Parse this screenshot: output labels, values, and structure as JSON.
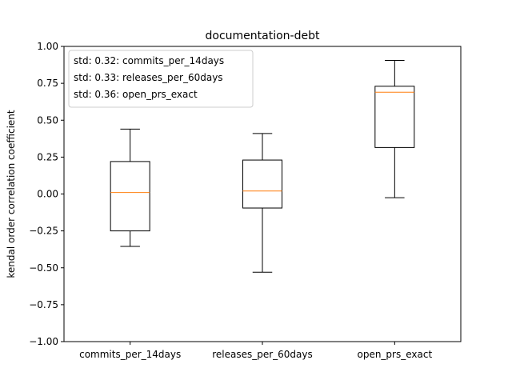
{
  "chart_data": {
    "type": "boxplot",
    "title": "documentation-debt",
    "xlabel": "",
    "ylabel": "kendal order correlation coefficient",
    "ylim": [
      -1.0,
      1.0
    ],
    "yticks": [
      -1.0,
      -0.75,
      -0.5,
      -0.25,
      0.0,
      0.25,
      0.5,
      0.75,
      1.0
    ],
    "ytick_labels": [
      "−1.00",
      "−0.75",
      "−0.50",
      "−0.25",
      "0.00",
      "0.25",
      "0.50",
      "0.75",
      "1.00"
    ],
    "categories": [
      "commits_per_14days",
      "releases_per_60days",
      "open_prs_exact"
    ],
    "boxes": [
      {
        "category": "commits_per_14days",
        "whisker_low": -0.355,
        "q1": -0.25,
        "median": 0.01,
        "q3": 0.22,
        "whisker_high": 0.44
      },
      {
        "category": "releases_per_60days",
        "whisker_low": -0.53,
        "q1": -0.095,
        "median": 0.02,
        "q3": 0.23,
        "whisker_high": 0.41
      },
      {
        "category": "open_prs_exact",
        "whisker_low": -0.025,
        "q1": 0.315,
        "median": 0.69,
        "q3": 0.73,
        "whisker_high": 0.905
      }
    ],
    "legend": {
      "placement": "top-left",
      "entries": [
        "std: 0.32: commits_per_14days",
        "std: 0.33: releases_per_60days",
        "std: 0.36: open_prs_exact"
      ]
    },
    "colors": {
      "box": "#000000",
      "median": "#ff7f0e",
      "legend_border": "#cccccc"
    },
    "grid": false
  }
}
